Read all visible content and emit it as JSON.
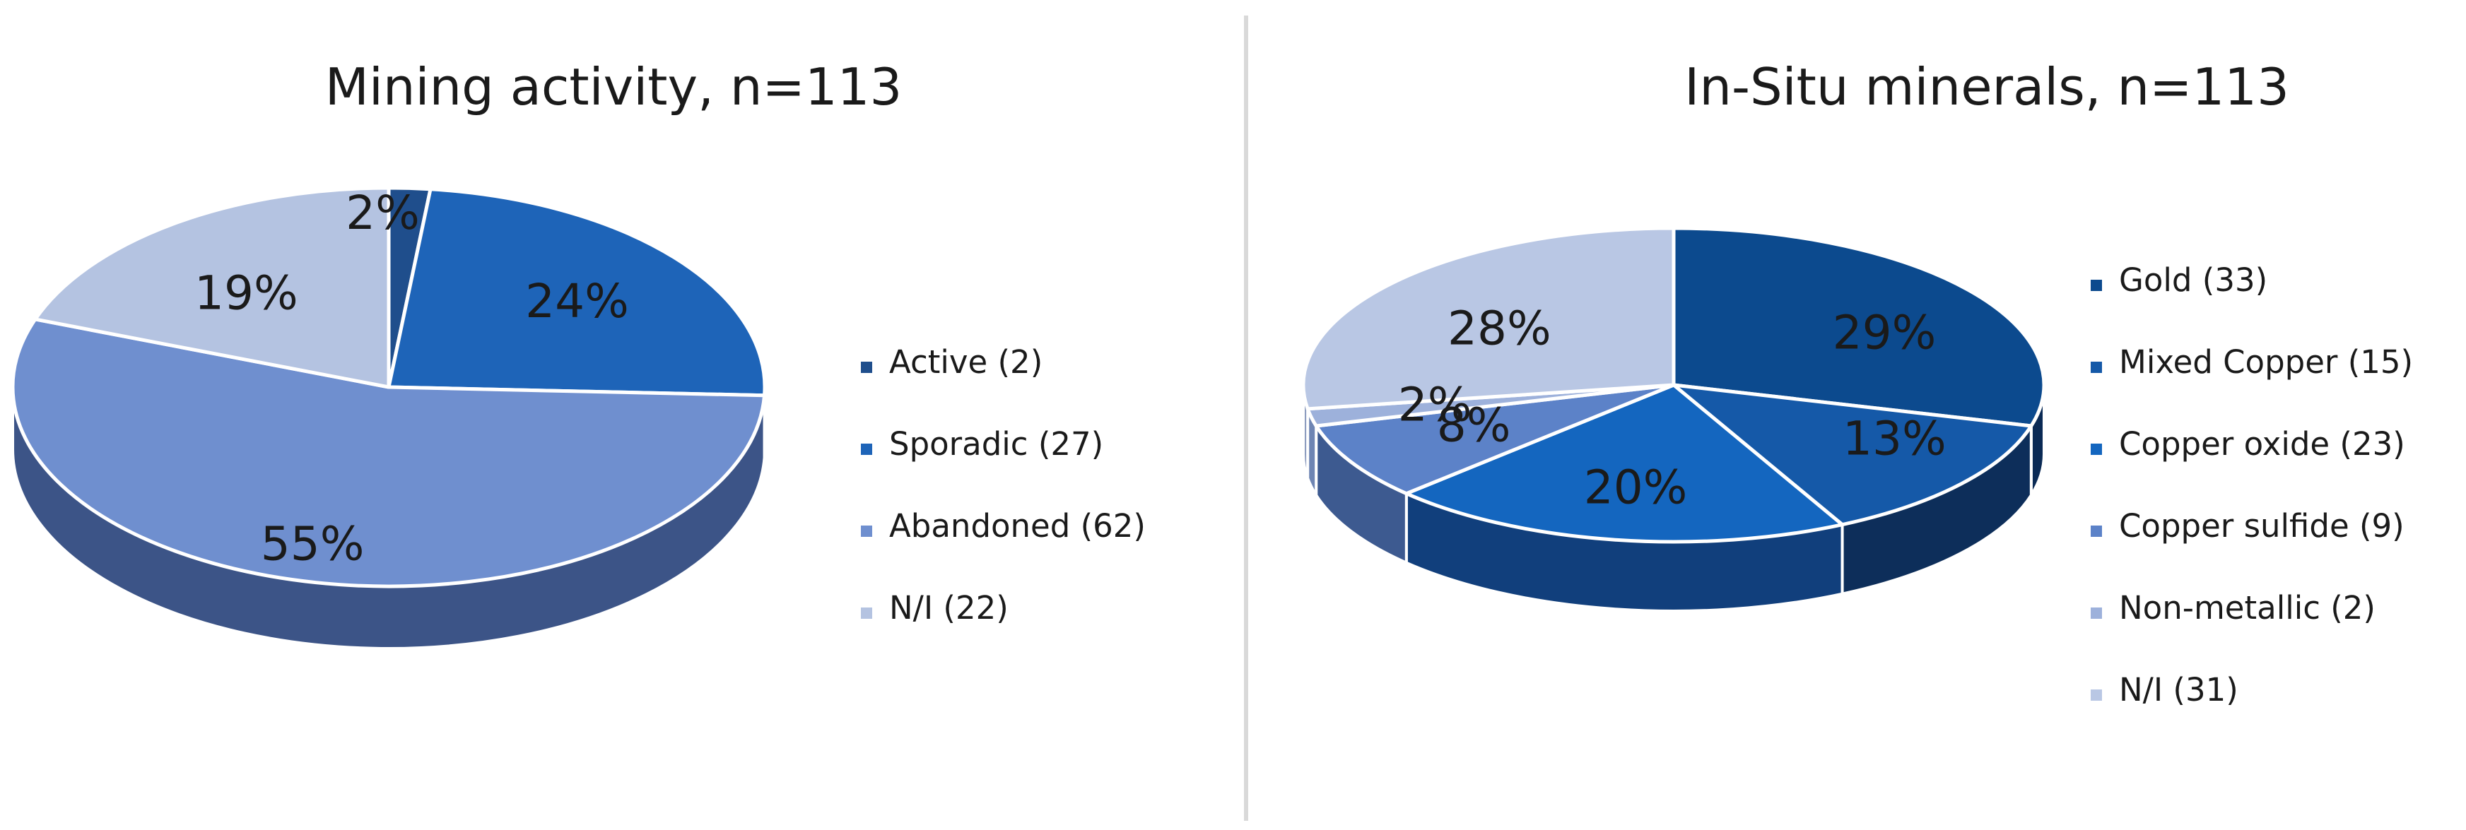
{
  "chart_data": [
    {
      "type": "pie",
      "title": "Mining activity, n=113",
      "labels": [
        "Active (2)",
        "Sporadic (27)",
        "Abandoned  (62)",
        "N/I (22)"
      ],
      "values": [
        2,
        27,
        62,
        22
      ],
      "percent_labels": [
        "2%",
        "24%",
        "55%",
        "19%"
      ],
      "colors": [
        "#1F4E8C",
        "#1E64B8",
        "#6F8FCF",
        "#B4C3E1"
      ],
      "side_colors": [
        "#16386a",
        "#154a8a",
        "#3c5487",
        "#7e8fb3"
      ],
      "style": "3d",
      "legend_position": "right"
    },
    {
      "type": "pie",
      "title": "In-Situ minerals, n=113",
      "labels": [
        "Gold (33)",
        "Mixed Copper (15)",
        "Copper oxide (23)",
        "Copper sulfide (9)",
        "Non-metallic (2)",
        "N/I (31)"
      ],
      "values": [
        33,
        15,
        23,
        9,
        2,
        31
      ],
      "percent_labels": [
        "29%",
        "13%",
        "20%",
        "8%",
        "2%",
        "28%"
      ],
      "colors": [
        "#0C4A8E",
        "#1559A8",
        "#1466BF",
        "#5C82C8",
        "#9DB1DB",
        "#B9C7E4"
      ],
      "side_colors": [
        "#0a2a55",
        "#0d2e5a",
        "#113f7c",
        "#3d5a90",
        "#6e85b3",
        "#8d9cbf"
      ],
      "style": "3d",
      "legend_position": "right"
    }
  ]
}
